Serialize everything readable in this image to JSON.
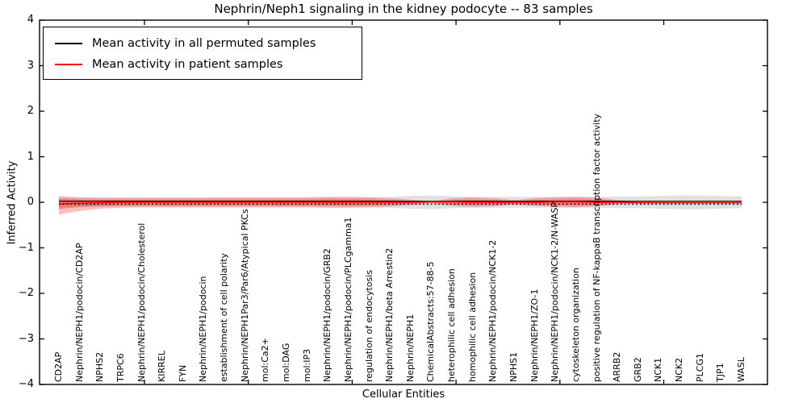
{
  "title": "Nephrin/Neph1 signaling in the kidney podocyte -- 83 samples",
  "legend": {
    "position": "upper left",
    "items": [
      {
        "label": "Mean activity in all permuted samples",
        "color": "#000000"
      },
      {
        "label": "Mean activity in patient samples",
        "color": "#ff0000"
      }
    ]
  },
  "chart_data": {
    "type": "line",
    "title": "Nephrin/Neph1 signaling in the kidney podocyte -- 83 samples",
    "xlabel": "Cellular Entities",
    "ylabel": "Inferred Activity",
    "ylim": [
      -4,
      4
    ],
    "ytick_labels": [
      "4",
      "3",
      "2",
      "1",
      "0",
      "−1",
      "−2",
      "−3",
      "−4"
    ],
    "grid": false,
    "legend_position": "upper left",
    "categories": [
      "CD2AP",
      "Nephrin/NEPH1/podocin/CD2AP",
      "NPHS2",
      "TRPC6",
      "Nephrin/NEPH1/podocin/Cholesterol",
      "KIRREL",
      "FYN",
      "Nephrin/NEPH1/podocin",
      "establishment of cell polarity",
      "Nephrin/NEPH1Par3/Par6/Atypical PKCs",
      "mol:Ca2+",
      "mol:DAG",
      "mol:IP3",
      "Nephrin/NEPH1/podocin/GRB2",
      "Nephrin/NEPH1/podocin/PLCgamma1",
      "regulation of endocytosis",
      "Nephrin/NEPH1/beta Arrestin2",
      "Nephrin/NEPH1",
      "ChemicalAbstracts:57-88-5",
      "heterophilic cell adhesion",
      "homophilic cell adhesion",
      "Nephrin/NEPH1/podocin/NCK1-2",
      "NPHS1",
      "Nephrin/NEPH1/ZO-1",
      "Nephrin/NEPH1/podocin/NCK1-2/N-WASP",
      "cytoskeleton organization",
      "positive regulation of NF-kappaB transcription factor activity",
      "ARRB2",
      "GRB2",
      "NCK1",
      "NCK2",
      "PLCG1",
      "TJP1",
      "WASL"
    ],
    "series": [
      {
        "name": "Mean activity in all permuted samples",
        "color": "#000000",
        "style": "solid-with-dashed-underline",
        "values": [
          0,
          0,
          0,
          0,
          0,
          0,
          0,
          0,
          0,
          0,
          0,
          0,
          0,
          0,
          0,
          0,
          0,
          0,
          0,
          0,
          0,
          0,
          0,
          0,
          0,
          0,
          0,
          0,
          0,
          0,
          0,
          0,
          0,
          0
        ]
      },
      {
        "name": "Mean activity in patient samples",
        "color": "#ff0000",
        "style": "solid",
        "values": [
          -0.03,
          -0.02,
          -0.01,
          0,
          0,
          0,
          0,
          0,
          0,
          0,
          0,
          0,
          0,
          0,
          0,
          0,
          0,
          0,
          0.01,
          0.01,
          0,
          0,
          0,
          0,
          0.01,
          0.01,
          0,
          0,
          -0.01,
          -0.01,
          -0.01,
          -0.01,
          -0.01,
          -0.01
        ]
      }
    ],
    "bands": [
      {
        "name": "patient-samples-spread",
        "color": "#ff0000",
        "upper": [
          0.14,
          0.11,
          0.1,
          0.1,
          0.1,
          0.1,
          0.1,
          0.1,
          0.11,
          0.11,
          0.11,
          0.11,
          0.11,
          0.12,
          0.12,
          0.11,
          0.09,
          0.06,
          0.02,
          0.09,
          0.11,
          0.09,
          0.05,
          0.09,
          0.11,
          0.12,
          0.1,
          0.05,
          0.02,
          0.01,
          0.01,
          0.01,
          0.01,
          0.01
        ],
        "lower": [
          -0.27,
          -0.19,
          -0.14,
          -0.12,
          -0.11,
          -0.11,
          -0.11,
          -0.11,
          -0.11,
          -0.11,
          -0.11,
          -0.11,
          -0.11,
          -0.12,
          -0.12,
          -0.11,
          -0.09,
          -0.06,
          -0.02,
          -0.08,
          -0.1,
          -0.09,
          -0.05,
          -0.08,
          -0.1,
          -0.11,
          -0.09,
          -0.04,
          -0.02,
          -0.01,
          -0.01,
          -0.01,
          -0.01,
          -0.01
        ]
      },
      {
        "name": "permuted-samples-spread",
        "color": "#aaaaaa",
        "half_width": [
          0.1,
          0.1,
          0.1,
          0.1,
          0.1,
          0.1,
          0.1,
          0.1,
          0.1,
          0.1,
          0.1,
          0.1,
          0.1,
          0.11,
          0.11,
          0.11,
          0.12,
          0.14,
          0.15,
          0.13,
          0.12,
          0.12,
          0.12,
          0.12,
          0.12,
          0.12,
          0.12,
          0.13,
          0.13,
          0.14,
          0.15,
          0.15,
          0.14,
          0.13
        ]
      }
    ]
  }
}
